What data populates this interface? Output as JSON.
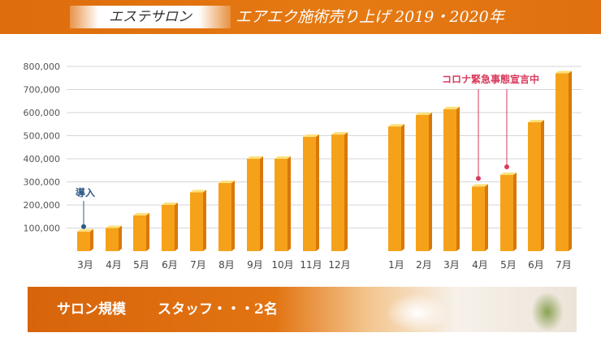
{
  "header": {
    "badge": "エステサロン",
    "title": "エアエク施術売り上げ 2019・2020年"
  },
  "chart_data": {
    "type": "bar",
    "categories": [
      "3月",
      "4月",
      "5月",
      "6月",
      "7月",
      "8月",
      "9月",
      "10月",
      "11月",
      "12月",
      "1月",
      "2月",
      "3月",
      "4月",
      "5月",
      "6月",
      "7月"
    ],
    "values": [
      85000,
      100000,
      155000,
      200000,
      255000,
      295000,
      400000,
      400000,
      495000,
      505000,
      540000,
      590000,
      615000,
      280000,
      330000,
      558000,
      770000
    ],
    "groups": [
      {
        "start": 0,
        "end": 9
      },
      {
        "start": 10,
        "end": 16
      }
    ],
    "y_ticks": [
      "100,000",
      "200,000",
      "300,000",
      "400,000",
      "500,000",
      "600,000",
      "700,000",
      "800,000"
    ],
    "ylim": [
      0,
      800000
    ],
    "grid": true,
    "colors": {
      "bar_front": "#f5a21a",
      "bar_side": "#d9780a",
      "bar_top": "#fde07a"
    },
    "annotations": [
      {
        "text": "導入",
        "index": 0,
        "color": "#2f5a8a"
      },
      {
        "text": "コロナ緊急事態宣言中",
        "indices": [
          13,
          14
        ],
        "color": "#d83a5c"
      }
    ]
  },
  "footer": {
    "label": "サロン規模",
    "value": "スタッフ・・・2名"
  }
}
